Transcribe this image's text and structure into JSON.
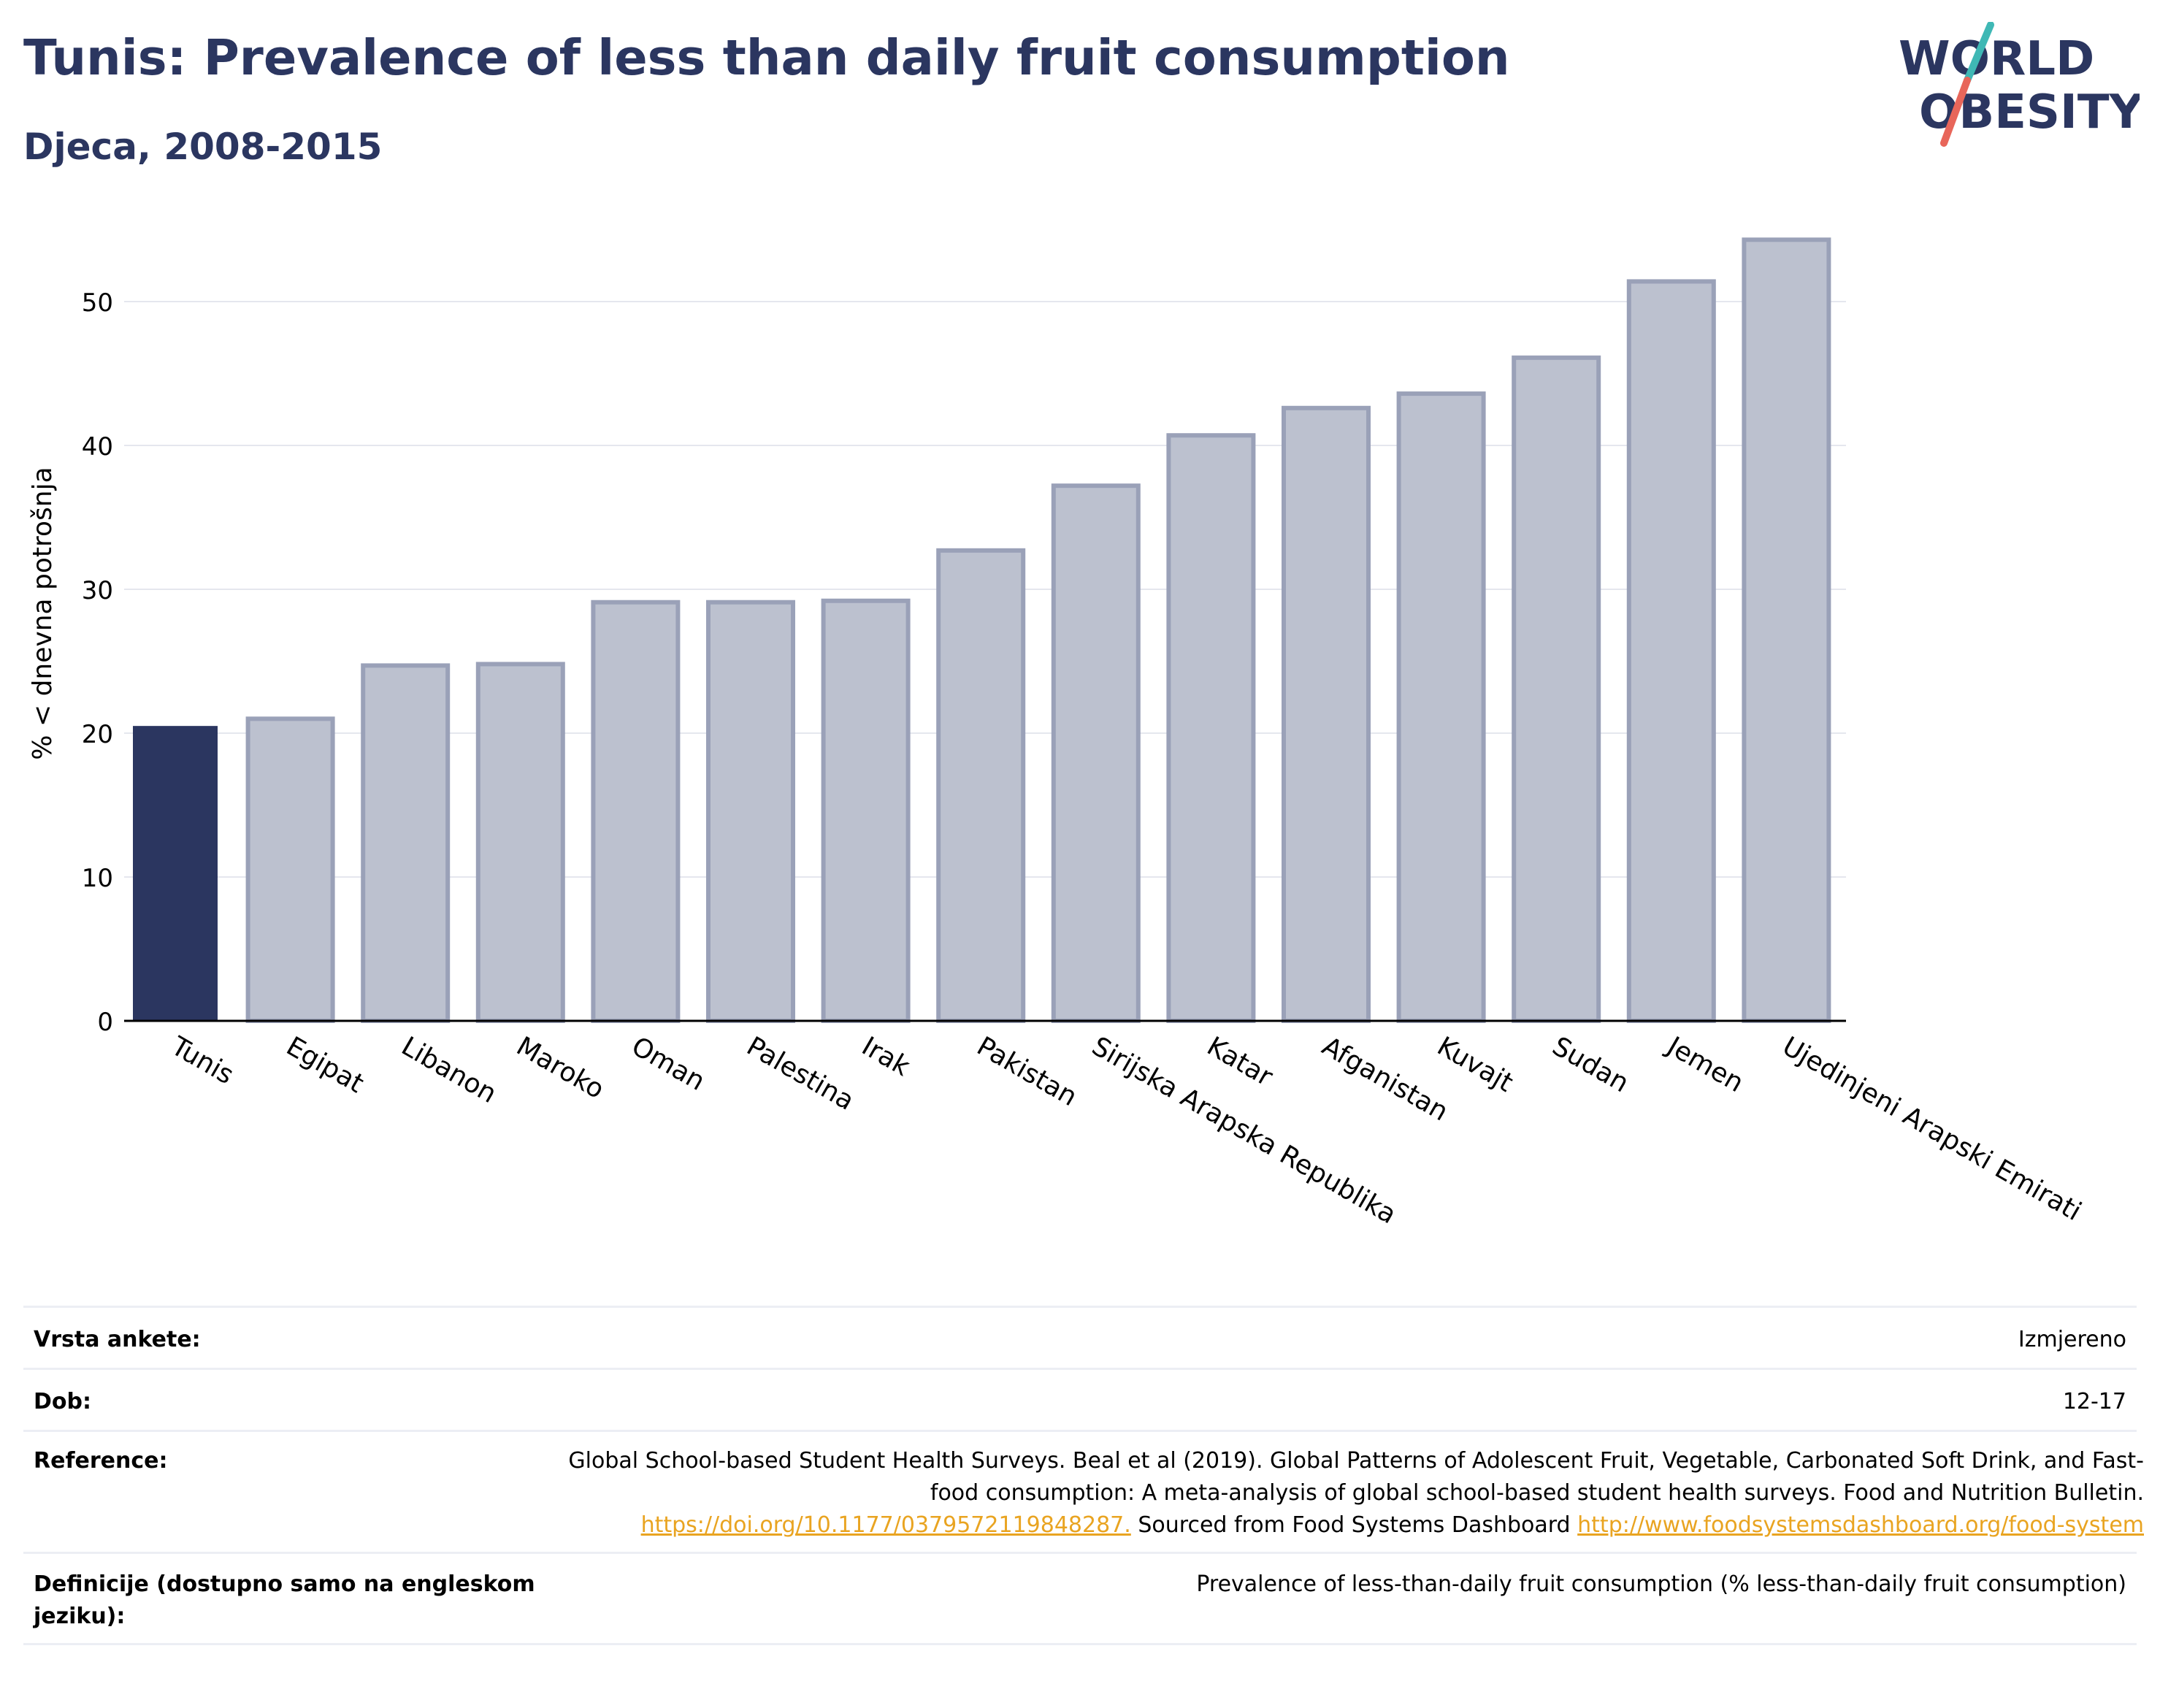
{
  "header": {
    "title": "Tunis: Prevalence of less than daily fruit consumption",
    "subtitle": "Djeca, 2008-2015"
  },
  "logo": {
    "line1": "WORLD",
    "line2": "OBESITY",
    "colors": {
      "text": "#2b3660",
      "slash_top": "#3fb8b5",
      "slash_bottom": "#e8665a"
    }
  },
  "colors": {
    "highlight_bar": "#2b3660",
    "other_bar_fill": "#bcc1cf",
    "other_bar_stroke": "#9aa1b8",
    "grid": "#e5e7ee",
    "axis": "#000000"
  },
  "chart_data": {
    "type": "bar",
    "title": "Tunis: Prevalence of less than daily fruit consumption",
    "subtitle": "Djeca, 2008-2015",
    "xlabel": "",
    "ylabel": "% < dnevna potrošnja",
    "ylim": [
      0,
      55
    ],
    "yticks": [
      0,
      10,
      20,
      30,
      40,
      50
    ],
    "grid": true,
    "highlight": "Tunis",
    "categories": [
      "Tunis",
      "Egipat",
      "Libanon",
      "Maroko",
      "Oman",
      "Palestina",
      "Irak",
      "Pakistan",
      "Sirijska Arapska Republika",
      "Katar",
      "Afganistan",
      "Kuvajt",
      "Sudan",
      "Jemen",
      "Ujedinjeni Arapski Emirati"
    ],
    "values": [
      20.5,
      21.0,
      24.7,
      24.8,
      29.1,
      29.1,
      29.2,
      32.7,
      37.2,
      40.7,
      42.6,
      43.6,
      46.1,
      51.4,
      54.3
    ]
  },
  "meta": {
    "rows": [
      {
        "label": "Vrsta ankete:",
        "value": "Izmjereno"
      },
      {
        "label": "Dob:",
        "value": "12-17"
      },
      {
        "label": "Definicije (dostupno samo na engleskom jeziku):",
        "value": "Prevalence of less-than-daily fruit consumption (% less-than-daily fruit consumption)"
      }
    ],
    "reference": {
      "label": "Reference:",
      "text1": "Global School-based Student Health Surveys. Beal et al (2019). Global Patterns of Adolescent Fruit, Vegetable, Carbonated Soft Drink, and Fast-food consumption: A meta-analysis of global school-based student health surveys. Food and Nutrition Bulletin.",
      "link1": "https://doi.org/10.1177/0379572119848287.",
      "text2": "Sourced from Food Systems Dashboard",
      "link2": "http://www.foodsystemsdashboard.org/food-system"
    }
  }
}
